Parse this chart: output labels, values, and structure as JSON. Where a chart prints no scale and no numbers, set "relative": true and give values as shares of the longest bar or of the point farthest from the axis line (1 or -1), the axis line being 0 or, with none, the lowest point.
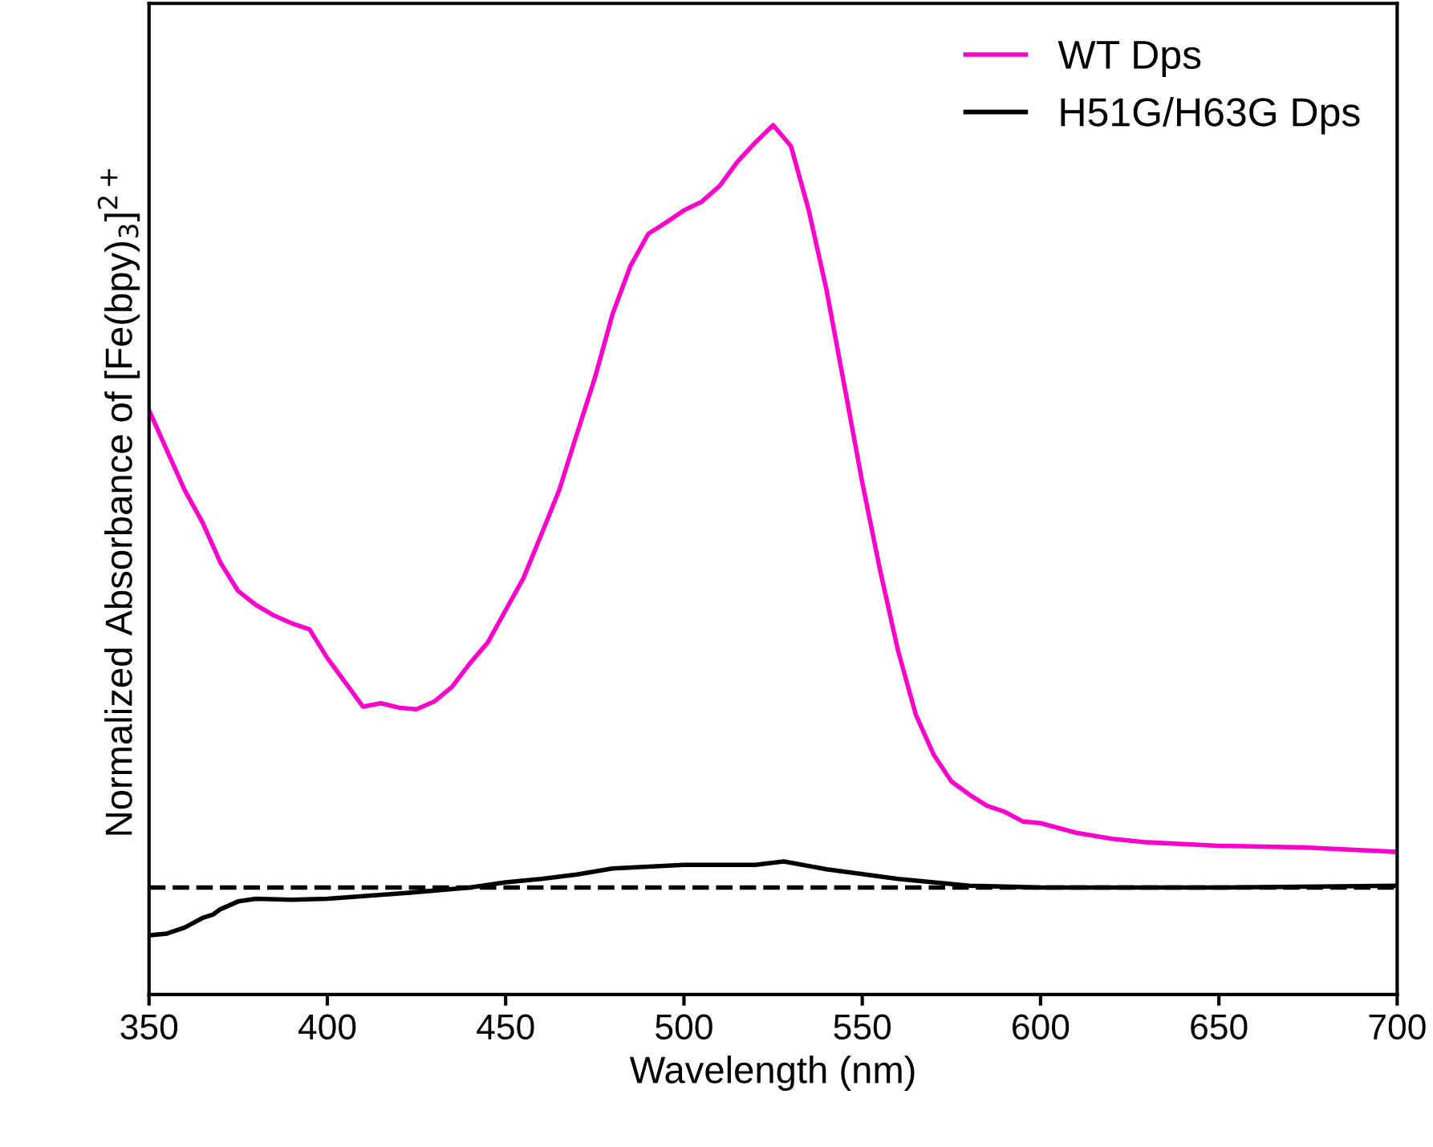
{
  "chart_data": {
    "type": "line",
    "relative": true,
    "xlabel": "Wavelength (nm)",
    "ylabel": "Normalized Absorbance of [Fe(bpy)$_{3}$]$^{2+}$",
    "xlim": [
      350,
      700
    ],
    "xticks": [
      350,
      400,
      450,
      500,
      550,
      600,
      650,
      700
    ],
    "legend": "top right",
    "grid": false,
    "line_style": "solid",
    "marker": "none",
    "ref_lines": [
      {
        "axis": "y",
        "value": 0.123,
        "label": null,
        "color": "#000000",
        "line_style": "dashed"
      }
    ],
    "series": [
      {
        "name": "WT Dps",
        "color": "#ff00cc",
        "x": [
          350,
          355,
          360,
          365,
          370,
          375,
          380,
          385,
          390,
          395,
          400,
          405,
          410,
          415,
          420,
          425,
          430,
          435,
          440,
          445,
          450,
          455,
          460,
          465,
          470,
          475,
          480,
          485,
          490,
          495,
          500,
          505,
          510,
          515,
          520,
          525,
          530,
          535,
          540,
          545,
          550,
          555,
          560,
          565,
          570,
          575,
          580,
          585,
          590,
          595,
          600,
          610,
          620,
          630,
          650,
          675,
          700
        ],
        "values": [
          0.672,
          0.626,
          0.58,
          0.543,
          0.497,
          0.464,
          0.448,
          0.436,
          0.427,
          0.42,
          0.387,
          0.359,
          0.331,
          0.335,
          0.33,
          0.328,
          0.337,
          0.354,
          0.381,
          0.405,
          0.442,
          0.479,
          0.529,
          0.58,
          0.645,
          0.709,
          0.783,
          0.838,
          0.875,
          0.888,
          0.902,
          0.912,
          0.93,
          0.958,
          0.98,
          1.0,
          0.976,
          0.902,
          0.81,
          0.7,
          0.589,
          0.488,
          0.396,
          0.322,
          0.276,
          0.245,
          0.23,
          0.217,
          0.21,
          0.199,
          0.197,
          0.186,
          0.179,
          0.175,
          0.171,
          0.169,
          0.164
        ]
      },
      {
        "name": "H51G/H63G Dps",
        "color": "#000000",
        "x": [
          350,
          355,
          360,
          365,
          368,
          370,
          375,
          380,
          390,
          400,
          420,
          440,
          450,
          460,
          470,
          480,
          500,
          520,
          528,
          540,
          560,
          580,
          600,
          650,
          700
        ],
        "values": [
          0.068,
          0.07,
          0.077,
          0.088,
          0.092,
          0.098,
          0.107,
          0.11,
          0.109,
          0.11,
          0.116,
          0.123,
          0.129,
          0.133,
          0.138,
          0.145,
          0.149,
          0.149,
          0.153,
          0.144,
          0.133,
          0.125,
          0.123,
          0.123,
          0.125
        ]
      }
    ]
  }
}
